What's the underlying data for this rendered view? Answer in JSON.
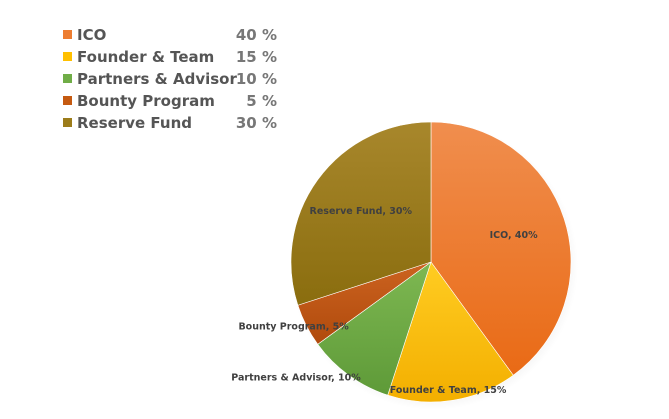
{
  "chart_data": {
    "type": "pie",
    "categories": [
      "ICO",
      "Founder & Team",
      "Partners & Advisor",
      "Bounty Program",
      "Reserve Fund"
    ],
    "values": [
      40,
      15,
      10,
      5,
      30
    ],
    "legend": {
      "labels": [
        "ICO",
        "Founder & Team",
        "Partners & Advisor",
        "Bounty Program",
        "Reserve Fund"
      ],
      "values": [
        "40 %",
        "15 %",
        "10 %",
        "5 %",
        "30 %"
      ]
    },
    "data_labels": [
      "ICO, 40%",
      "Founder & Team, 15%",
      "Partners & Advisor, 10%",
      "Bounty Program, 5%",
      "Reserve Fund, 30%"
    ],
    "colors": [
      "#ED7D31",
      "#FFC000",
      "#70AD47",
      "#C55A11",
      "#9C7C1A"
    ],
    "legend_placement": "top-left"
  }
}
